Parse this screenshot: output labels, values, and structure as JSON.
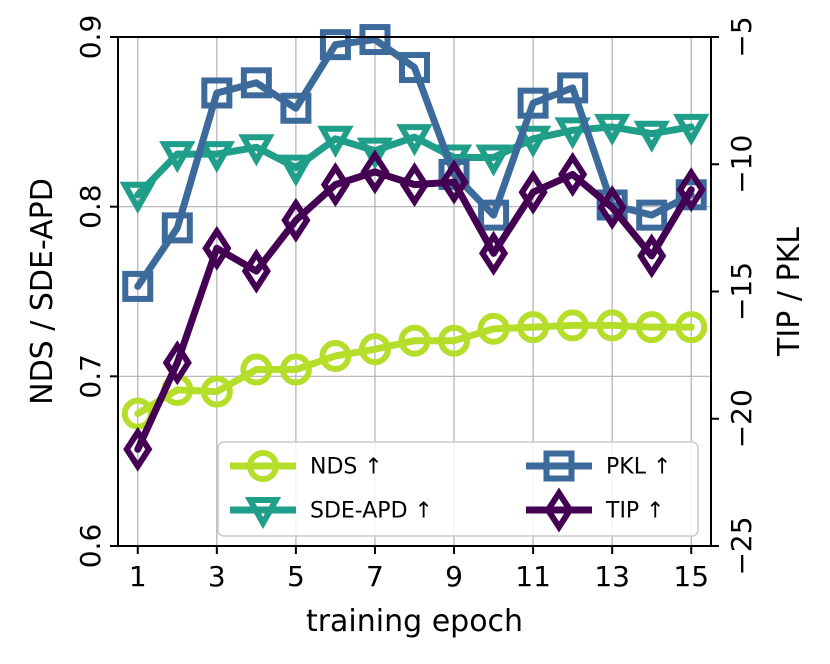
{
  "chart_data": {
    "type": "line",
    "xlabel": "training epoch",
    "ylabel_left": "NDS / SDE-APD",
    "ylabel_right": "TIP / PKL",
    "x": [
      1,
      2,
      3,
      4,
      5,
      6,
      7,
      8,
      9,
      10,
      11,
      12,
      13,
      14,
      15
    ],
    "xticks": [
      1,
      3,
      5,
      7,
      9,
      11,
      13,
      15
    ],
    "xlim": [
      0.5,
      15.5
    ],
    "ylim_left": [
      0.6,
      0.9
    ],
    "yticks_left": [
      0.6,
      0.7,
      0.8,
      0.9
    ],
    "ylim_right": [
      -25,
      -5
    ],
    "yticks_right": [
      -25,
      -20,
      -15,
      -10,
      -5
    ],
    "grid": true,
    "legend_position": "lower-right",
    "series": [
      {
        "name": "NDS ↑",
        "axis": "left",
        "marker": "circle",
        "color": "#b5de2b",
        "values": [
          0.678,
          0.692,
          0.691,
          0.704,
          0.704,
          0.712,
          0.716,
          0.721,
          0.721,
          0.728,
          0.729,
          0.73,
          0.73,
          0.729,
          0.729
        ]
      },
      {
        "name": "SDE-APD ↑",
        "axis": "left",
        "marker": "triangle-down",
        "color": "#1f9e89",
        "values": [
          0.807,
          0.831,
          0.831,
          0.835,
          0.823,
          0.84,
          0.833,
          0.841,
          0.829,
          0.829,
          0.84,
          0.845,
          0.847,
          0.843,
          0.847
        ]
      },
      {
        "name": "PKL ↑",
        "axis": "right",
        "marker": "square",
        "color": "#3b6a9b",
        "values": [
          -14.8,
          -12.5,
          -7.2,
          -6.8,
          -7.8,
          -5.3,
          -5.1,
          -6.2,
          -10.4,
          -12.0,
          -7.6,
          -7.0,
          -11.6,
          -12.0,
          -11.2
        ]
      },
      {
        "name": "TIP ↑",
        "axis": "right",
        "marker": "diamond",
        "color": "#440154",
        "values": [
          -21.2,
          -17.8,
          -13.3,
          -14.2,
          -12.2,
          -10.8,
          -10.3,
          -10.8,
          -10.7,
          -13.5,
          -11.1,
          -10.4,
          -11.7,
          -13.6,
          -11.0
        ]
      }
    ]
  }
}
